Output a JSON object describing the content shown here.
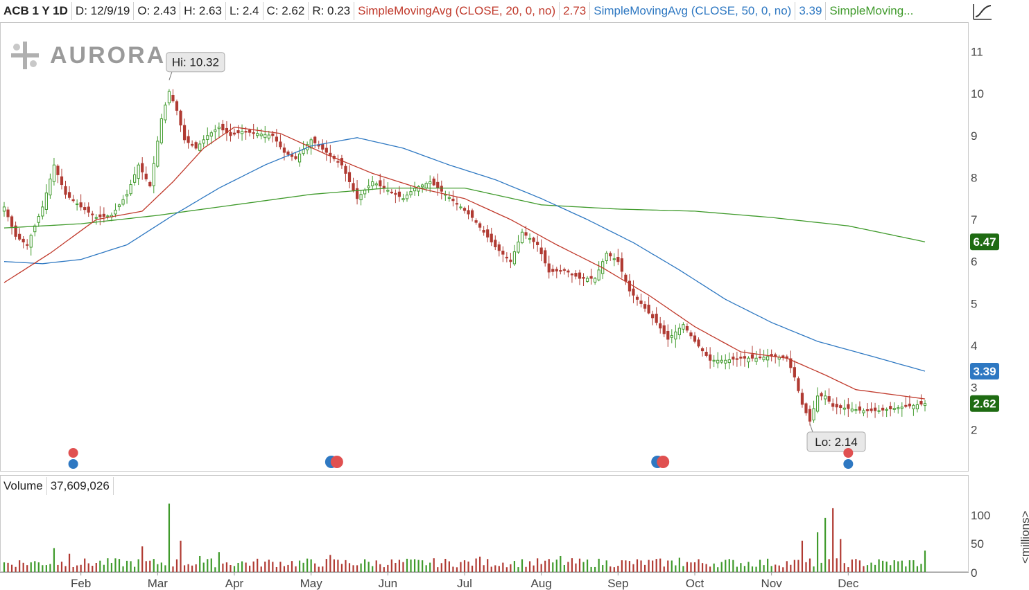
{
  "header": {
    "symbol": "ACB 1 Y 1D",
    "date": "D: 12/9/19",
    "open": "O: 2.43",
    "high": "H: 2.63",
    "low": "L: 2.4",
    "close": "C: 2.62",
    "range": "R: 0.23",
    "sma20_label": "SimpleMovingAvg (CLOSE, 20, 0, no)",
    "sma20_value": "2.73",
    "sma50_label": "SimpleMovingAvg (CLOSE, 50, 0, no)",
    "sma50_value": "3.39",
    "sma200_label": "SimpleMoving..."
  },
  "logo": {
    "text": "AURORA",
    "icon": "cannabis-cross-logo-icon"
  },
  "volume_header": {
    "label": "Volume",
    "value": "37,609,026"
  },
  "annotations": {
    "high": "Hi: 10.32",
    "low": "Lo: 2.14"
  },
  "price_badges": {
    "sma200": "6.47",
    "sma50": "3.39",
    "last": "2.62"
  },
  "volume_unit": "<millions>",
  "colors": {
    "up": "#3f9a2b",
    "down": "#b03a32",
    "sma20": "#c0392b",
    "sma50": "#2e78c2",
    "sma200": "#3f9a2b",
    "last_badge": "#1e6b12",
    "sma50_badge": "#2e78c2",
    "sma200_badge": "#1e6b12",
    "event_red": "#e05050",
    "event_blue": "#2e78c2"
  },
  "chart_data": {
    "type": "candlestick",
    "y_ticks": [
      2,
      3,
      4,
      5,
      6,
      7,
      8,
      9,
      10,
      11
    ],
    "ylim": [
      1.0,
      11.7
    ],
    "volume_ticks": [
      0,
      50,
      100
    ],
    "volume_ylim": [
      0,
      135
    ],
    "x_tick_labels": [
      "Feb",
      "Mar",
      "Apr",
      "May",
      "Jun",
      "Jul",
      "Aug",
      "Sep",
      "Oct",
      "Nov",
      "Dec"
    ],
    "x_tick_positions": [
      20,
      40,
      60,
      80,
      100,
      120,
      140,
      160,
      180,
      200,
      220
    ],
    "sessions": 241,
    "key_closes": [
      [
        0,
        7.3
      ],
      [
        3,
        6.6
      ],
      [
        6,
        6.4
      ],
      [
        10,
        7.3
      ],
      [
        13,
        8.3
      ],
      [
        16,
        7.6
      ],
      [
        20,
        7.3
      ],
      [
        24,
        7.05
      ],
      [
        28,
        7.1
      ],
      [
        32,
        7.6
      ],
      [
        35,
        8.3
      ],
      [
        38,
        7.8
      ],
      [
        41,
        9.4
      ],
      [
        43,
        10.05
      ],
      [
        45,
        9.6
      ],
      [
        47,
        8.9
      ],
      [
        50,
        8.7
      ],
      [
        53,
        9.0
      ],
      [
        56,
        9.2
      ],
      [
        59,
        9.0
      ],
      [
        62,
        9.1
      ],
      [
        66,
        9.05
      ],
      [
        70,
        9.0
      ],
      [
        73,
        8.6
      ],
      [
        76,
        8.45
      ],
      [
        80,
        8.9
      ],
      [
        84,
        8.6
      ],
      [
        88,
        8.3
      ],
      [
        92,
        7.5
      ],
      [
        96,
        7.9
      ],
      [
        100,
        7.7
      ],
      [
        104,
        7.5
      ],
      [
        107,
        7.75
      ],
      [
        111,
        7.9
      ],
      [
        115,
        7.6
      ],
      [
        119,
        7.3
      ],
      [
        122,
        7.05
      ],
      [
        125,
        6.7
      ],
      [
        128,
        6.35
      ],
      [
        132,
        6.0
      ],
      [
        135,
        6.7
      ],
      [
        139,
        6.4
      ],
      [
        142,
        5.75
      ],
      [
        146,
        5.8
      ],
      [
        150,
        5.6
      ],
      [
        154,
        5.6
      ],
      [
        157,
        6.2
      ],
      [
        160,
        6.0
      ],
      [
        163,
        5.3
      ],
      [
        166,
        5.0
      ],
      [
        170,
        4.55
      ],
      [
        173,
        4.15
      ],
      [
        177,
        4.5
      ],
      [
        180,
        4.1
      ],
      [
        184,
        3.65
      ],
      [
        188,
        3.65
      ],
      [
        192,
        3.7
      ],
      [
        196,
        3.7
      ],
      [
        200,
        3.75
      ],
      [
        204,
        3.7
      ],
      [
        206,
        3.25
      ],
      [
        208,
        2.6
      ],
      [
        210,
        2.2
      ],
      [
        212,
        2.8
      ],
      [
        214,
        2.8
      ],
      [
        216,
        2.55
      ],
      [
        220,
        2.5
      ],
      [
        224,
        2.45
      ],
      [
        228,
        2.45
      ],
      [
        240,
        2.62
      ]
    ],
    "sma20_points": [
      [
        0,
        5.5
      ],
      [
        12,
        6.2
      ],
      [
        24,
        7.0
      ],
      [
        36,
        7.2
      ],
      [
        44,
        7.9
      ],
      [
        52,
        8.7
      ],
      [
        60,
        9.2
      ],
      [
        72,
        9.05
      ],
      [
        84,
        8.55
      ],
      [
        96,
        8.1
      ],
      [
        108,
        7.75
      ],
      [
        120,
        7.5
      ],
      [
        132,
        7.0
      ],
      [
        144,
        6.4
      ],
      [
        156,
        5.85
      ],
      [
        168,
        5.2
      ],
      [
        180,
        4.45
      ],
      [
        192,
        3.85
      ],
      [
        204,
        3.7
      ],
      [
        214,
        3.3
      ],
      [
        222,
        2.95
      ],
      [
        240,
        2.73
      ]
    ],
    "sma50_points": [
      [
        0,
        6.0
      ],
      [
        10,
        5.95
      ],
      [
        20,
        6.05
      ],
      [
        32,
        6.4
      ],
      [
        44,
        7.1
      ],
      [
        56,
        7.75
      ],
      [
        68,
        8.3
      ],
      [
        80,
        8.75
      ],
      [
        92,
        8.95
      ],
      [
        104,
        8.7
      ],
      [
        116,
        8.3
      ],
      [
        128,
        7.95
      ],
      [
        140,
        7.5
      ],
      [
        152,
        7.0
      ],
      [
        164,
        6.45
      ],
      [
        176,
        5.8
      ],
      [
        188,
        5.1
      ],
      [
        200,
        4.55
      ],
      [
        212,
        4.1
      ],
      [
        224,
        3.8
      ],
      [
        240,
        3.39
      ]
    ],
    "sma200_points": [
      [
        0,
        6.8
      ],
      [
        20,
        6.9
      ],
      [
        40,
        7.1
      ],
      [
        60,
        7.35
      ],
      [
        80,
        7.6
      ],
      [
        100,
        7.75
      ],
      [
        120,
        7.75
      ],
      [
        140,
        7.35
      ],
      [
        160,
        7.25
      ],
      [
        180,
        7.2
      ],
      [
        200,
        7.05
      ],
      [
        220,
        6.85
      ],
      [
        240,
        6.47
      ]
    ],
    "volume_spikes": [
      [
        13,
        42
      ],
      [
        17,
        32
      ],
      [
        36,
        45
      ],
      [
        43,
        120
      ],
      [
        46,
        55
      ],
      [
        51,
        28
      ],
      [
        56,
        35
      ],
      [
        85,
        30
      ],
      [
        124,
        27
      ],
      [
        145,
        28
      ],
      [
        176,
        25
      ],
      [
        208,
        55
      ],
      [
        212,
        70
      ],
      [
        214,
        95
      ],
      [
        216,
        112
      ],
      [
        218,
        58
      ],
      [
        240,
        37.6
      ]
    ],
    "volume_base": 18,
    "high_annotation": {
      "session": 43,
      "value": 10.32
    },
    "low_annotation": {
      "session": 210,
      "value": 2.14
    },
    "events": [
      {
        "session": 18,
        "kind": "stack"
      },
      {
        "session": 86,
        "kind": "pair"
      },
      {
        "session": 171,
        "kind": "pair"
      },
      {
        "session": 220,
        "kind": "stack"
      }
    ]
  }
}
